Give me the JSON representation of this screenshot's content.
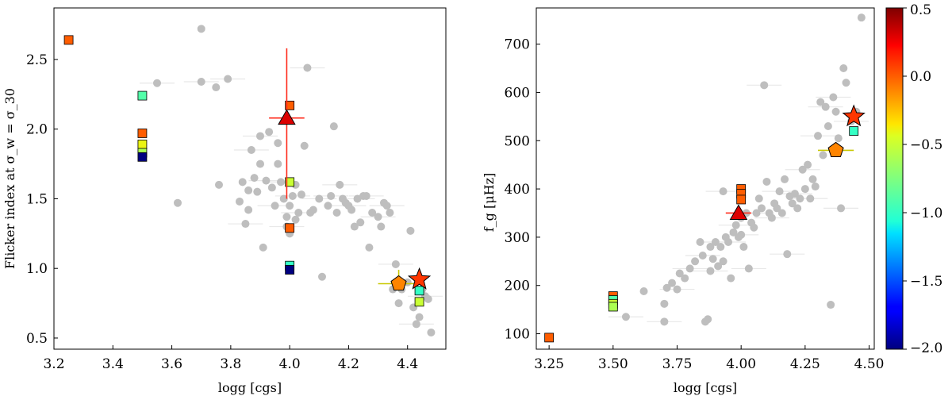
{
  "chart_data": [
    {
      "type": "scatter",
      "xlabel": "logg [cgs]",
      "ylabel": "Flicker index at σ_w = σ_30",
      "xlim": [
        3.2,
        4.53
      ],
      "ylim": [
        0.42,
        2.87
      ],
      "xticks": [
        "3.2",
        "3.4",
        "3.6",
        "3.8",
        "4.0",
        "4.2",
        "4.4"
      ],
      "xtick_values": [
        3.2,
        3.4,
        3.6,
        3.8,
        4.0,
        4.2,
        4.4
      ],
      "yticks": [
        "0.5",
        "1.0",
        "1.5",
        "2.0",
        "2.5"
      ],
      "ytick_values": [
        0.5,
        1.0,
        1.5,
        2.0,
        2.5
      ],
      "background_stars": [
        [
          3.55,
          2.33
        ],
        [
          3.62,
          1.47
        ],
        [
          3.7,
          2.72
        ],
        [
          3.7,
          2.34
        ],
        [
          3.75,
          2.3
        ],
        [
          3.76,
          1.6
        ],
        [
          3.79,
          2.36
        ],
        [
          3.83,
          1.48
        ],
        [
          3.84,
          1.62
        ],
        [
          3.85,
          1.32
        ],
        [
          3.86,
          1.42
        ],
        [
          3.86,
          1.56
        ],
        [
          3.87,
          1.85
        ],
        [
          3.88,
          1.65
        ],
        [
          3.89,
          1.55
        ],
        [
          3.9,
          1.95
        ],
        [
          3.9,
          1.75
        ],
        [
          3.91,
          1.15
        ],
        [
          3.92,
          1.63
        ],
        [
          3.93,
          1.98
        ],
        [
          3.94,
          1.58
        ],
        [
          3.95,
          1.45
        ],
        [
          3.96,
          1.9
        ],
        [
          3.96,
          1.75
        ],
        [
          3.97,
          1.62
        ],
        [
          3.98,
          1.5
        ],
        [
          3.99,
          1.37
        ],
        [
          3.99,
          1.3
        ],
        [
          4.0,
          1.45
        ],
        [
          4.0,
          1.25
        ],
        [
          4.01,
          1.52
        ],
        [
          4.02,
          1.6
        ],
        [
          4.02,
          1.35
        ],
        [
          4.03,
          1.4
        ],
        [
          4.04,
          1.53
        ],
        [
          4.05,
          1.88
        ],
        [
          4.06,
          2.44
        ],
        [
          4.07,
          1.4
        ],
        [
          4.08,
          1.42
        ],
        [
          4.1,
          1.5
        ],
        [
          4.11,
          0.94
        ],
        [
          4.13,
          1.45
        ],
        [
          4.14,
          1.52
        ],
        [
          4.15,
          2.02
        ],
        [
          4.16,
          1.4
        ],
        [
          4.17,
          1.6
        ],
        [
          4.18,
          1.5
        ],
        [
          4.19,
          1.47
        ],
        [
          4.2,
          1.45
        ],
        [
          4.21,
          1.42
        ],
        [
          4.22,
          1.3
        ],
        [
          4.23,
          1.5
        ],
        [
          4.24,
          1.33
        ],
        [
          4.25,
          1.52
        ],
        [
          4.26,
          1.52
        ],
        [
          4.27,
          1.15
        ],
        [
          4.28,
          1.4
        ],
        [
          4.3,
          1.37
        ],
        [
          4.31,
          1.3
        ],
        [
          4.32,
          1.47
        ],
        [
          4.33,
          1.45
        ],
        [
          4.34,
          1.4
        ],
        [
          4.35,
          0.85
        ],
        [
          4.36,
          1.03
        ],
        [
          4.37,
          0.75
        ],
        [
          4.38,
          0.85
        ],
        [
          4.4,
          0.9
        ],
        [
          4.41,
          1.27
        ],
        [
          4.42,
          0.72
        ],
        [
          4.43,
          0.6
        ],
        [
          4.44,
          0.65
        ],
        [
          4.45,
          0.85
        ],
        [
          4.46,
          0.8
        ],
        [
          4.47,
          0.78
        ],
        [
          4.48,
          0.54
        ]
      ],
      "squares": [
        {
          "x": 3.25,
          "y": 2.64,
          "z": 0.0
        },
        {
          "x": 3.5,
          "y": 2.24,
          "z": -0.9
        },
        {
          "x": 3.5,
          "y": 1.97,
          "z": 0.0
        },
        {
          "x": 3.5,
          "y": 1.89,
          "z": -0.4
        },
        {
          "x": 3.5,
          "y": 1.83,
          "z": -0.6
        },
        {
          "x": 3.5,
          "y": 1.8,
          "z": -2.0
        },
        {
          "x": 4.0,
          "y": 2.17,
          "z": 0.0
        },
        {
          "x": 4.0,
          "y": 1.62,
          "z": -0.5
        },
        {
          "x": 4.0,
          "y": 1.29,
          "z": 0.0
        },
        {
          "x": 4.0,
          "y": 1.02,
          "z": -1.0
        },
        {
          "x": 4.0,
          "y": 0.99,
          "z": -2.0
        },
        {
          "x": 4.44,
          "y": 0.84,
          "z": -1.0
        },
        {
          "x": 4.44,
          "y": 0.76,
          "z": -0.5
        }
      ],
      "special": [
        {
          "shape": "triangle",
          "x": 3.99,
          "y": 2.08,
          "z": 0.3,
          "xerr": 0.06,
          "yerr": [
            0.58,
            0.5
          ],
          "err_color": "#ff2a1a"
        },
        {
          "shape": "pentagon",
          "x": 4.37,
          "y": 0.89,
          "z": -0.1,
          "xerr": 0.07,
          "yerr": [
            0.05,
            0.1
          ],
          "err_color": "#c8c800"
        },
        {
          "shape": "star",
          "x": 4.44,
          "y": 0.92,
          "z": 0.1,
          "xerr": 0,
          "yerr": [
            0,
            0
          ],
          "err_color": "#ff6a00"
        }
      ]
    },
    {
      "type": "scatter",
      "xlabel": "logg [cgs]",
      "ylabel": "f_g [μHz]",
      "xlim": [
        3.2,
        4.52
      ],
      "ylim": [
        68,
        775
      ],
      "xticks": [
        "3.25",
        "3.50",
        "3.75",
        "4.00",
        "4.25",
        "4.50"
      ],
      "xtick_values": [
        3.25,
        3.5,
        3.75,
        4.0,
        4.25,
        4.5
      ],
      "yticks": [
        "100",
        "200",
        "300",
        "400",
        "500",
        "600",
        "700"
      ],
      "ytick_values": [
        100,
        200,
        300,
        400,
        500,
        600,
        700
      ],
      "background_stars": [
        [
          3.55,
          135
        ],
        [
          3.62,
          188
        ],
        [
          3.7,
          162
        ],
        [
          3.7,
          125
        ],
        [
          3.71,
          195
        ],
        [
          3.73,
          205
        ],
        [
          3.75,
          192
        ],
        [
          3.76,
          225
        ],
        [
          3.78,
          215
        ],
        [
          3.8,
          235
        ],
        [
          3.82,
          250
        ],
        [
          3.84,
          290
        ],
        [
          3.85,
          262
        ],
        [
          3.86,
          125
        ],
        [
          3.87,
          130
        ],
        [
          3.88,
          230
        ],
        [
          3.88,
          280
        ],
        [
          3.89,
          255
        ],
        [
          3.9,
          290
        ],
        [
          3.91,
          240
        ],
        [
          3.92,
          280
        ],
        [
          3.93,
          395
        ],
        [
          3.93,
          250
        ],
        [
          3.94,
          300
        ],
        [
          3.95,
          290
        ],
        [
          3.96,
          215
        ],
        [
          3.97,
          310
        ],
        [
          3.98,
          325
        ],
        [
          3.99,
          300
        ],
        [
          4.0,
          340
        ],
        [
          4.0,
          305
        ],
        [
          4.01,
          280
        ],
        [
          4.02,
          350
        ],
        [
          4.03,
          235
        ],
        [
          4.04,
          330
        ],
        [
          4.05,
          320
        ],
        [
          4.06,
          350
        ],
        [
          4.07,
          380
        ],
        [
          4.08,
          360
        ],
        [
          4.09,
          615
        ],
        [
          4.1,
          415
        ],
        [
          4.11,
          350
        ],
        [
          4.12,
          340
        ],
        [
          4.13,
          370
        ],
        [
          4.14,
          360
        ],
        [
          4.15,
          395
        ],
        [
          4.16,
          350
        ],
        [
          4.17,
          420
        ],
        [
          4.18,
          265
        ],
        [
          4.19,
          385
        ],
        [
          4.2,
          370
        ],
        [
          4.21,
          390
        ],
        [
          4.22,
          360
        ],
        [
          4.23,
          380
        ],
        [
          4.24,
          440
        ],
        [
          4.25,
          400
        ],
        [
          4.26,
          450
        ],
        [
          4.27,
          380
        ],
        [
          4.28,
          420
        ],
        [
          4.29,
          405
        ],
        [
          4.3,
          510
        ],
        [
          4.31,
          580
        ],
        [
          4.32,
          470
        ],
        [
          4.33,
          570
        ],
        [
          4.34,
          530
        ],
        [
          4.35,
          160
        ],
        [
          4.36,
          590
        ],
        [
          4.37,
          560
        ],
        [
          4.38,
          505
        ],
        [
          4.39,
          360
        ],
        [
          4.4,
          650
        ],
        [
          4.41,
          620
        ],
        [
          4.43,
          540
        ],
        [
          4.45,
          560
        ],
        [
          4.47,
          755
        ]
      ],
      "squares": [
        {
          "x": 3.25,
          "y": 92,
          "z": 0.0
        },
        {
          "x": 3.5,
          "y": 178,
          "z": 0.0
        },
        {
          "x": 3.5,
          "y": 170,
          "z": -0.9
        },
        {
          "x": 3.5,
          "y": 162,
          "z": -0.5
        },
        {
          "x": 3.5,
          "y": 156,
          "z": -0.6
        },
        {
          "x": 4.0,
          "y": 400,
          "z": 0.0
        },
        {
          "x": 4.0,
          "y": 390,
          "z": 0.0
        },
        {
          "x": 4.0,
          "y": 378,
          "z": 0.0
        },
        {
          "x": 4.44,
          "y": 520,
          "z": -1.0
        }
      ],
      "special": [
        {
          "shape": "triangle",
          "x": 3.99,
          "y": 350,
          "z": 0.3,
          "xerr": 0.05,
          "yerr": [
            0,
            0
          ],
          "err_color": "#ff2a1a"
        },
        {
          "shape": "pentagon",
          "x": 4.37,
          "y": 480,
          "z": -0.1,
          "xerr": 0.07,
          "yerr": [
            0,
            0
          ],
          "err_color": "#c8c800"
        },
        {
          "shape": "star",
          "x": 4.44,
          "y": 550,
          "z": 0.1,
          "xerr": 0,
          "yerr": [
            0,
            0
          ],
          "err_color": "#ff6a00"
        }
      ]
    }
  ],
  "colorbar": {
    "min": -2.0,
    "max": 0.5,
    "ticks": [
      "0.5",
      "0.0",
      "−0.5",
      "−1.0",
      "−1.5",
      "−2.0"
    ],
    "tick_values": [
      0.5,
      0.0,
      -0.5,
      -1.0,
      -1.5,
      -2.0
    ]
  },
  "colors": {
    "background_star": "#bebebe",
    "error_bar": "#e8e8e8",
    "marker_edge": "#000000"
  }
}
